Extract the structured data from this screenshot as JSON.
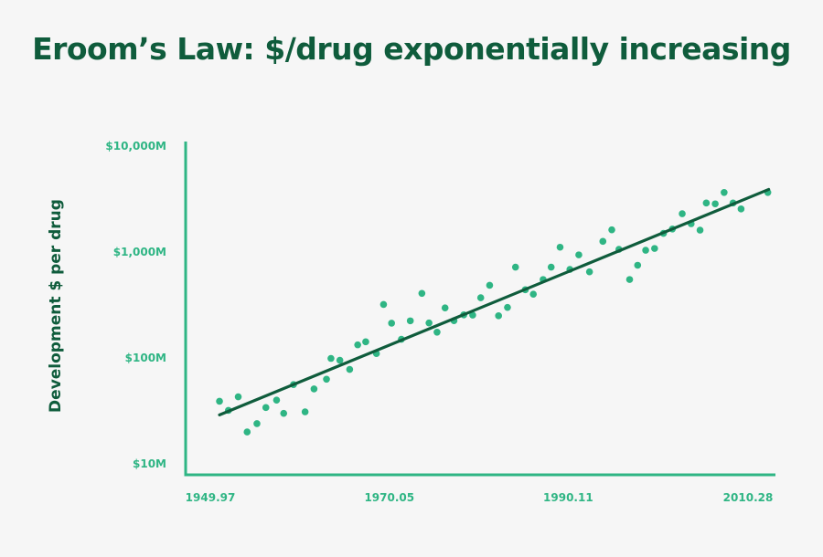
{
  "colors": {
    "title": "#0f5c3c",
    "axis": "#2fb584",
    "point": "#2fb584",
    "trendline": "#0f5c3c",
    "tick_text": "#2fb584",
    "ylabel": "#0f5c3c"
  },
  "chart_data": {
    "type": "scatter",
    "title": "Eroom’s Law: $/drug exponentially increasing",
    "xlabel": "",
    "ylabel": "Development $ per drug",
    "y_scale": "log",
    "xlim": [
      1949.97,
      2010.28
    ],
    "ylim": [
      10,
      10000
    ],
    "y_unit": "$M",
    "x_ticks": [
      {
        "value": 1949.97,
        "label": "1949.97"
      },
      {
        "value": 1970.05,
        "label": "1970.05"
      },
      {
        "value": 1990.11,
        "label": "1990.11"
      },
      {
        "value": 2010.28,
        "label": "2010.28"
      }
    ],
    "y_ticks": [
      {
        "value": 10000,
        "label": "$10,000M"
      },
      {
        "value": 1000,
        "label": "$1,000M"
      },
      {
        "value": 100,
        "label": "$100M"
      },
      {
        "value": 10,
        "label": "$10M"
      }
    ],
    "grid": false,
    "series": [
      {
        "points": [
          [
            1951.0,
            39
          ],
          [
            1952.0,
            32
          ],
          [
            1953.1,
            43
          ],
          [
            1954.1,
            20
          ],
          [
            1955.2,
            24
          ],
          [
            1956.2,
            34
          ],
          [
            1957.4,
            40
          ],
          [
            1958.2,
            30
          ],
          [
            1959.3,
            56
          ],
          [
            1960.6,
            31
          ],
          [
            1961.6,
            51
          ],
          [
            1963.0,
            63
          ],
          [
            1963.5,
            99
          ],
          [
            1964.5,
            95
          ],
          [
            1965.6,
            78
          ],
          [
            1966.5,
            133
          ],
          [
            1967.4,
            142
          ],
          [
            1968.6,
            110
          ],
          [
            1969.4,
            320
          ],
          [
            1970.3,
            213
          ],
          [
            1971.4,
            150
          ],
          [
            1972.4,
            224
          ],
          [
            1973.7,
            407
          ],
          [
            1974.5,
            214
          ],
          [
            1975.4,
            175
          ],
          [
            1976.3,
            297
          ],
          [
            1977.3,
            225
          ],
          [
            1978.4,
            255
          ],
          [
            1979.4,
            254
          ],
          [
            1980.3,
            370
          ],
          [
            1981.3,
            485
          ],
          [
            1982.3,
            250
          ],
          [
            1983.3,
            300
          ],
          [
            1984.2,
            720
          ],
          [
            1985.3,
            440
          ],
          [
            1986.2,
            400
          ],
          [
            1987.3,
            550
          ],
          [
            1988.2,
            720
          ],
          [
            1989.2,
            1110
          ],
          [
            1990.3,
            685
          ],
          [
            1991.3,
            940
          ],
          [
            1992.5,
            650
          ],
          [
            1994.0,
            1260
          ],
          [
            1995.0,
            1620
          ],
          [
            1995.8,
            1060
          ],
          [
            1997.0,
            550
          ],
          [
            1997.9,
            750
          ],
          [
            1998.8,
            1040
          ],
          [
            1999.8,
            1080
          ],
          [
            2000.8,
            1500
          ],
          [
            2001.8,
            1650
          ],
          [
            2002.9,
            2300
          ],
          [
            2003.9,
            1850
          ],
          [
            2004.9,
            1610
          ],
          [
            2005.6,
            2900
          ],
          [
            2006.6,
            2850
          ],
          [
            2007.6,
            3650
          ],
          [
            2008.6,
            2900
          ],
          [
            2009.5,
            2550
          ],
          [
            2012.5,
            3650
          ]
        ]
      }
    ],
    "trendline": {
      "start": [
        1951.0,
        29
      ],
      "end": [
        2012.6,
        3900
      ]
    }
  }
}
